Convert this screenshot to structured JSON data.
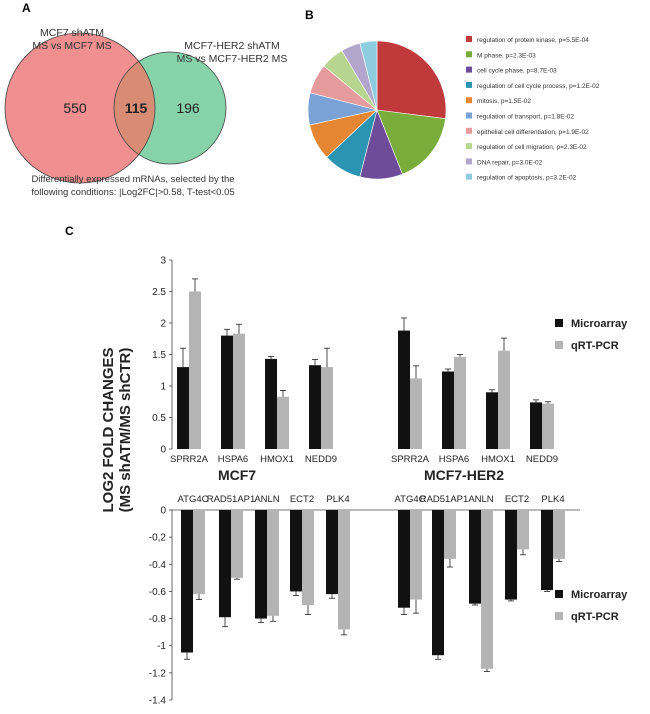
{
  "chart_data": [
    {
      "type": "venn",
      "panel": "A",
      "sets": [
        {
          "name_line1": "MCF7 shATM",
          "name_line2": "MS vs MCF7 MS",
          "only_count": "550",
          "color": "#ef8f8f"
        },
        {
          "name_line1": "MCF7-HER2 shATM",
          "name_line2": "MS vs MCF7-HER2 MS",
          "only_count": "196",
          "color": "#86d3aa"
        }
      ],
      "intersection": "115",
      "intersection_color": "#cc2222",
      "note_line1": "Differentially expressed mRNAs, selected by the",
      "note_line2": "following conditions: |Log2FC|>0.58, T-test<0.05"
    },
    {
      "type": "pie",
      "panel": "B",
      "slices": [
        {
          "label": "regulation of protein kinase, p=5.5E-04",
          "value": 27,
          "color": "#c0393b"
        },
        {
          "label": "M phase, p=2.3E-03",
          "value": 17,
          "color": "#78ad3c"
        },
        {
          "label": "cell cycle phase, p=8.7E-03",
          "value": 10,
          "color": "#6e4c99"
        },
        {
          "label": "regulation of cell cycle process, p=1.2E-02",
          "value": 9,
          "color": "#2b94b3"
        },
        {
          "label": "mitosis, p=1.5E-02",
          "value": 8.5,
          "color": "#e58632"
        },
        {
          "label": "regulation of transport, p=1.8E-02",
          "value": 7.5,
          "color": "#7ba2d6"
        },
        {
          "label": "epithelial cell differentiation, p=1.9E-02",
          "value": 7,
          "color": "#e59a9c"
        },
        {
          "label": "regulation of cell migration, p=2.3E-02",
          "value": 5.5,
          "color": "#b7d58f"
        },
        {
          "label": "DNA repair, p=3.0E-02",
          "value": 4.5,
          "color": "#b3a6cc"
        },
        {
          "label": "regulation of apoptosis, p=3.2E-02",
          "value": 4,
          "color": "#8ecde0"
        }
      ]
    },
    {
      "type": "bar",
      "panel": "C",
      "ylabel_line1": "LOG2 FOLD CHANGES",
      "ylabel_line2": "(MS shATM/MS shCTR)",
      "series_names": [
        "Microarray",
        "qRT-PCR"
      ],
      "series_colors": [
        "#111111",
        "#b4b4b4"
      ],
      "up": {
        "yticks": [
          "3",
          "2.5",
          "2",
          "1.5",
          "1",
          "0.5",
          "0"
        ],
        "ylim": [
          0,
          3
        ],
        "groups": [
          {
            "title": "MCF7",
            "genes": [
              "SPRR2A",
              "HSPA6",
              "HMOX1",
              "NEDD9"
            ],
            "microarray": [
              1.3,
              1.8,
              1.43,
              1.33
            ],
            "microarray_err": [
              0.3,
              0.1,
              0.04,
              0.09
            ],
            "qrtpcr": [
              2.5,
              1.83,
              0.83,
              1.3
            ],
            "qrtpcr_err": [
              0.2,
              0.15,
              0.1,
              0.3
            ]
          },
          {
            "title": "MCF7-HER2",
            "genes": [
              "SPRR2A",
              "HSPA6",
              "HMOX1",
              "NEDD9"
            ],
            "microarray": [
              1.88,
              1.23,
              0.9,
              0.74
            ],
            "microarray_err": [
              0.2,
              0.04,
              0.04,
              0.04
            ],
            "qrtpcr": [
              1.12,
              1.46,
              1.56,
              0.72
            ],
            "qrtpcr_err": [
              0.2,
              0.04,
              0.2,
              0.03
            ]
          }
        ]
      },
      "down": {
        "yticks": [
          "0",
          "-0,2",
          "-0.4",
          "-0.6",
          "-0.8",
          "-1",
          "-1.2",
          "-1.4"
        ],
        "ylim": [
          -1.4,
          0
        ],
        "groups": [
          {
            "genes": [
              "ATG4C",
              "RAD51AP1",
              "ANLN",
              "ECT2",
              "PLK4"
            ],
            "microarray": [
              -1.05,
              -0.79,
              -0.8,
              -0.6,
              -0.62
            ],
            "microarray_err": [
              0.05,
              0.07,
              0.03,
              0.03,
              0.03
            ],
            "qrtpcr": [
              -0.62,
              -0.5,
              -0.78,
              -0.7,
              -0.88
            ],
            "qrtpcr_err": [
              0.04,
              0.01,
              0.04,
              0.07,
              0.04
            ]
          },
          {
            "genes": [
              "ATG4C",
              "RAD51AP1",
              "ANLN",
              "ECT2",
              "PLK4"
            ],
            "microarray": [
              -0.72,
              -1.07,
              -0.69,
              -0.66,
              -0.59
            ],
            "microarray_err": [
              0.05,
              0.03,
              0.01,
              0.01,
              0.01
            ],
            "qrtpcr": [
              -0.66,
              -0.36,
              -1.17,
              -0.29,
              -0.36
            ],
            "qrtpcr_err": [
              0.1,
              0.06,
              0.02,
              0.04,
              0.02
            ]
          }
        ]
      }
    }
  ]
}
